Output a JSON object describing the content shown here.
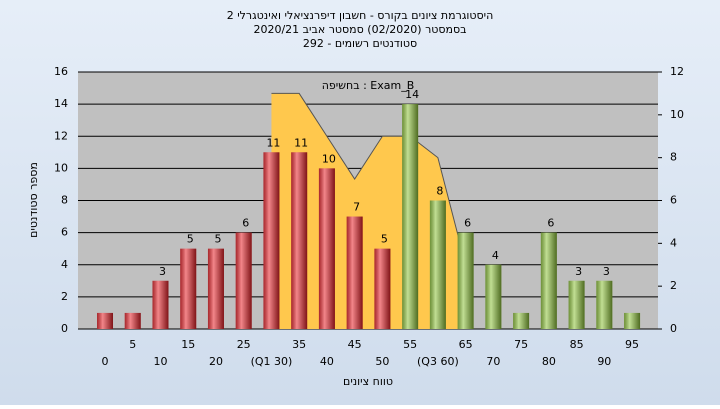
{
  "chart_data": {
    "type": "bar",
    "title": [
      "היסטוגרמת ציונים בקורס - חשבון דיפרנציאלי ואינטגרלי 2",
      "בסמסטר  (02/2020)  סמסטר אביב 2020/21",
      "סטודנטים רשומים - 292"
    ],
    "ylabel": "מספר סטודנטים",
    "xlabel": "טווח ציונים",
    "categories": [
      "0",
      "5",
      "10",
      "15",
      "20",
      "25",
      "(Q1 30)",
      "35",
      "40",
      "45",
      "50",
      "55",
      "(Q3 60)",
      "65",
      "70",
      "75",
      "80",
      "85",
      "90",
      "95"
    ],
    "values": [
      1,
      1,
      3,
      5,
      5,
      6,
      11,
      11,
      10,
      7,
      5,
      14,
      8,
      6,
      4,
      1,
      6,
      3,
      3,
      1
    ],
    "value_labels": [
      null,
      null,
      "3",
      "5",
      "5",
      "6",
      "11",
      "11",
      "10",
      "7",
      "5",
      "14",
      "8",
      "6",
      "4",
      null,
      "6",
      "3",
      "3",
      null
    ],
    "colors": [
      "#e8232a",
      "#e8232a",
      "#e8232a",
      "#e8232a",
      "#e8232a",
      "#e8232a",
      "#e8232a",
      "#e8232a",
      "#e8232a",
      "#e8232a",
      "#e8232a",
      "#8fc43c",
      "#8fc43c",
      "#8fc43c",
      "#8fc43c",
      "#8fc43c",
      "#8fc43c",
      "#8fc43c",
      "#8fc43c",
      "#8fc43c"
    ],
    "series": [
      {
        "name": "Exam_B : בחשיפה",
        "color": "#ffc84d",
        "axis": "y2",
        "values": [
          null,
          null,
          null,
          null,
          null,
          null,
          11,
          11,
          9,
          7,
          9,
          9,
          8,
          3,
          null,
          null,
          null,
          null,
          null,
          null
        ]
      }
    ],
    "ylim": [
      0,
      16
    ],
    "yticks": [
      0,
      2,
      4,
      6,
      8,
      10,
      12,
      14,
      16
    ],
    "y2lim": [
      0,
      12
    ],
    "y2ticks": [
      0,
      2,
      4,
      6,
      8,
      10,
      12
    ],
    "grid": true
  }
}
